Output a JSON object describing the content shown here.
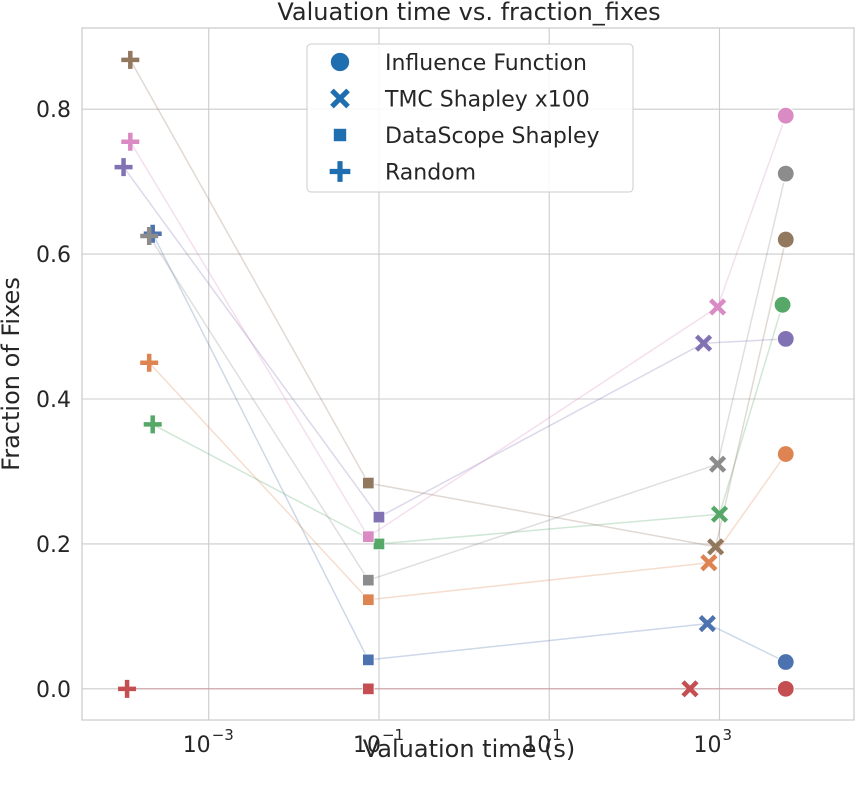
{
  "chart_data": {
    "type": "scatter",
    "title": "Valuation time vs. fraction_fixes",
    "xlabel": "Valuation time (s)",
    "ylabel": "Fraction of Fixes",
    "xscale": "log",
    "xlim": [
      3.25e-05,
      38000
    ],
    "ylim": [
      -0.043,
      0.912
    ],
    "grid": true,
    "xticks": [
      {
        "value": 0.001,
        "base": "10",
        "exp": "−3"
      },
      {
        "value": 0.1,
        "base": "10",
        "exp": "−1"
      },
      {
        "value": 10,
        "base": "10",
        "exp": "1"
      },
      {
        "value": 1000,
        "base": "10",
        "exp": "3"
      }
    ],
    "yticks": [
      {
        "value": 0.0,
        "label": "0.0"
      },
      {
        "value": 0.2,
        "label": "0.2"
      },
      {
        "value": 0.4,
        "label": "0.4"
      },
      {
        "value": 0.6,
        "label": "0.6"
      },
      {
        "value": 0.8,
        "label": "0.8"
      }
    ],
    "legend": {
      "placement": "top-center",
      "entries": [
        {
          "name": "Influence Function",
          "marker": "circle"
        },
        {
          "name": "TMC Shapley x100",
          "marker": "x"
        },
        {
          "name": "DataScope Shapley",
          "marker": "square"
        },
        {
          "name": "Random",
          "marker": "plus"
        }
      ]
    },
    "series": [
      {
        "color": "#4c72b0",
        "points": [
          {
            "method": "Random",
            "x": 0.00022,
            "y": 0.628
          },
          {
            "method": "DataScope Shapley",
            "x": 0.075,
            "y": 0.04
          },
          {
            "method": "TMC Shapley x100",
            "x": 720,
            "y": 0.09
          },
          {
            "method": "Influence Function",
            "x": 6000,
            "y": 0.037
          }
        ]
      },
      {
        "color": "#dd8452",
        "points": [
          {
            "method": "Random",
            "x": 0.0002,
            "y": 0.45
          },
          {
            "method": "DataScope Shapley",
            "x": 0.075,
            "y": 0.123
          },
          {
            "method": "TMC Shapley x100",
            "x": 750,
            "y": 0.174
          },
          {
            "method": "Influence Function",
            "x": 6000,
            "y": 0.324
          }
        ]
      },
      {
        "color": "#55a868",
        "points": [
          {
            "method": "Random",
            "x": 0.00022,
            "y": 0.365
          },
          {
            "method": "DataScope Shapley",
            "x": 0.1,
            "y": 0.2
          },
          {
            "method": "TMC Shapley x100",
            "x": 1000,
            "y": 0.241
          },
          {
            "method": "Influence Function",
            "x": 5500,
            "y": 0.53
          }
        ]
      },
      {
        "color": "#c44e52",
        "points": [
          {
            "method": "Random",
            "x": 0.00011,
            "y": 0.0
          },
          {
            "method": "DataScope Shapley",
            "x": 0.075,
            "y": 0.0
          },
          {
            "method": "TMC Shapley x100",
            "x": 450,
            "y": 0.0
          },
          {
            "method": "Influence Function",
            "x": 6000,
            "y": 0.0
          }
        ]
      },
      {
        "color": "#8172b3",
        "points": [
          {
            "method": "Random",
            "x": 0.0001,
            "y": 0.72
          },
          {
            "method": "DataScope Shapley",
            "x": 0.1,
            "y": 0.237
          },
          {
            "method": "TMC Shapley x100",
            "x": 650,
            "y": 0.477
          },
          {
            "method": "Influence Function",
            "x": 6000,
            "y": 0.483
          }
        ]
      },
      {
        "color": "#937860",
        "points": [
          {
            "method": "Random",
            "x": 0.00012,
            "y": 0.868
          },
          {
            "method": "DataScope Shapley",
            "x": 0.075,
            "y": 0.284
          },
          {
            "method": "TMC Shapley x100",
            "x": 900,
            "y": 0.196
          },
          {
            "method": "Influence Function",
            "x": 6000,
            "y": 0.62
          }
        ]
      },
      {
        "color": "#da8bc3",
        "points": [
          {
            "method": "Random",
            "x": 0.00012,
            "y": 0.755
          },
          {
            "method": "DataScope Shapley",
            "x": 0.075,
            "y": 0.21
          },
          {
            "method": "TMC Shapley x100",
            "x": 950,
            "y": 0.527
          },
          {
            "method": "Influence Function",
            "x": 6000,
            "y": 0.791
          }
        ]
      },
      {
        "color": "#8c8c8c",
        "points": [
          {
            "method": "Random",
            "x": 0.0002,
            "y": 0.625
          },
          {
            "method": "DataScope Shapley",
            "x": 0.075,
            "y": 0.15
          },
          {
            "method": "TMC Shapley x100",
            "x": 950,
            "y": 0.31
          },
          {
            "method": "Influence Function",
            "x": 6000,
            "y": 0.711
          }
        ]
      }
    ]
  }
}
